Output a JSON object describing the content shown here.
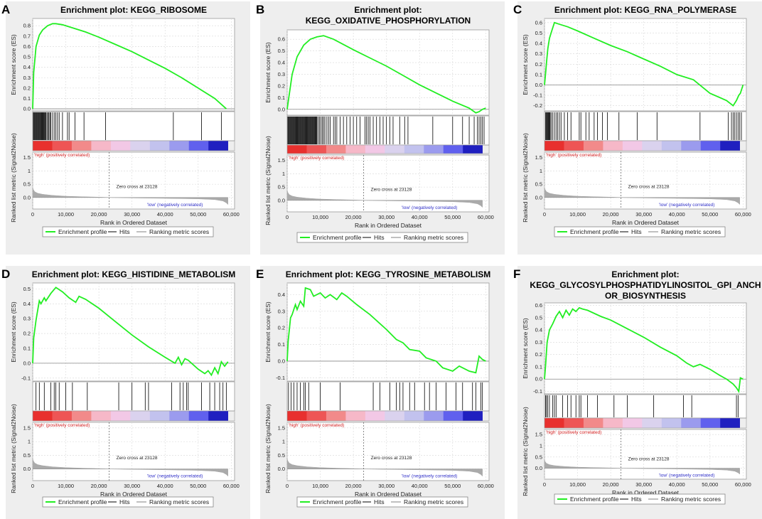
{
  "chart_data": [
    {
      "type": "line",
      "letter": "A",
      "title_lines": [
        "Enrichment plot: KEGG_RIBOSOME"
      ],
      "ylabel": "Enrichment score (ES)",
      "ylabel2": "Ranked list metric (Signal2Noise)",
      "xlabel": "Rank in Ordered Dataset",
      "ylim": [
        -0.02,
        0.87
      ],
      "yticks": [
        "0.0",
        "0.1",
        "0.2",
        "0.3",
        "0.4",
        "0.5",
        "0.6",
        "0.7",
        "0.8"
      ],
      "x": [
        0,
        300,
        1000,
        2000,
        3000,
        4500,
        6000,
        7000,
        9000,
        12000,
        16000,
        20000,
        25000,
        30000,
        35000,
        40000,
        45000,
        50000,
        55000,
        58500
      ],
      "es": [
        0,
        0.35,
        0.6,
        0.71,
        0.76,
        0.8,
        0.82,
        0.82,
        0.81,
        0.78,
        0.74,
        0.69,
        0.62,
        0.55,
        0.47,
        0.39,
        0.3,
        0.2,
        0.1,
        0.0
      ],
      "hits": [
        200,
        400,
        600,
        800,
        1000,
        1200,
        1400,
        1600,
        1800,
        2000,
        2200,
        2400,
        2600,
        2800,
        3000,
        3200,
        3400,
        3600,
        3800,
        4000,
        4300,
        4600,
        4900,
        5200,
        5500,
        6000,
        6500,
        7000,
        7500,
        8000,
        9000,
        10500,
        11000,
        12800,
        15500,
        22000,
        42500,
        51000,
        57000
      ],
      "metric_yticks": [
        "0.0",
        "0.5",
        "1",
        "1.5"
      ],
      "xticks": [
        "0",
        "10,000",
        "20,000",
        "30,000",
        "40,000",
        "50,000",
        "60,000"
      ],
      "zero_cross_label": "Zero cross at 23128",
      "high_label": "'high' (positively correlated)",
      "low_label": "'low' (negatively correlated)",
      "legend": [
        "Enrichment profile",
        "Hits",
        "Ranking metric scores"
      ]
    },
    {
      "type": "line",
      "letter": "B",
      "title_lines": [
        "Enrichment plot:",
        "KEGG_OXIDATIVE_PHOSPHORYLATION"
      ],
      "ylabel": "Enrichment score (ES)",
      "ylabel2": "Ranked list metric (Signal2Noise)",
      "xlabel": "Rank in Ordered Dataset",
      "ylim": [
        -0.05,
        0.68
      ],
      "yticks": [
        "0.0",
        "0.1",
        "0.2",
        "0.3",
        "0.4",
        "0.5",
        "0.6"
      ],
      "x": [
        0,
        500,
        1500,
        3000,
        5000,
        7000,
        9000,
        11000,
        14000,
        20000,
        25000,
        30000,
        35000,
        40000,
        45000,
        50000,
        55000,
        57000,
        58000,
        59000,
        60000
      ],
      "es": [
        0,
        0.1,
        0.3,
        0.45,
        0.55,
        0.6,
        0.62,
        0.63,
        0.6,
        0.51,
        0.44,
        0.37,
        0.29,
        0.21,
        0.14,
        0.07,
        0.01,
        -0.03,
        -0.02,
        0.0,
        0.01
      ],
      "hits": [
        200,
        400,
        600,
        800,
        1000,
        1200,
        1400,
        1600,
        1800,
        2000,
        2200,
        2400,
        2600,
        2800,
        3000,
        3200,
        3400,
        3600,
        3800,
        4000,
        4200,
        4400,
        4600,
        4800,
        5000,
        5200,
        5400,
        5600,
        5800,
        6000,
        6200,
        6400,
        6600,
        6800,
        7000,
        7200,
        7400,
        7600,
        7800,
        8000,
        8200,
        8400,
        8600,
        8800,
        9000,
        9400,
        9800,
        10200,
        10600,
        11000,
        11400,
        12000,
        12500,
        13000,
        14000,
        14500,
        15000,
        16000,
        17000,
        18000,
        19000,
        20000,
        21000,
        22000,
        23500,
        24000,
        24500,
        25000,
        26000,
        27000,
        28000,
        29000,
        30000,
        31000,
        32000,
        34000,
        35500,
        36500,
        44000,
        50000,
        53000,
        55000,
        56500,
        57500,
        58000,
        58500,
        59000,
        59500
      ],
      "metric_yticks": [
        "0.0",
        "0.5",
        "1",
        "1.5"
      ],
      "xticks": [
        "0",
        "10,000",
        "20,000",
        "30,000",
        "40,000",
        "50,000",
        "60,000"
      ],
      "zero_cross_label": "Zero cross at 23128",
      "high_label": "'high' (positively correlated)",
      "low_label": "'low' (negatively correlated)",
      "legend": [
        "Enrichment profile",
        "Hits",
        "Ranking metric scores"
      ]
    },
    {
      "type": "line",
      "letter": "C",
      "title_lines": [
        "Enrichment plot: KEGG_RNA_POLYMERASE"
      ],
      "ylabel": "Enrichment score (ES)",
      "ylabel2": "Ranked list metric (Signal2Noise)",
      "xlabel": "Rank in Ordered Dataset",
      "ylim": [
        -0.25,
        0.64
      ],
      "yticks": [
        "-0.2",
        "-0.1",
        "0.0",
        "0.1",
        "0.2",
        "0.3",
        "0.4",
        "0.5",
        "0.6"
      ],
      "x": [
        0,
        300,
        700,
        1000,
        1500,
        2000,
        2500,
        3000,
        4000,
        5000,
        7000,
        10000,
        15000,
        20000,
        25000,
        30000,
        35000,
        40000,
        45000,
        50000,
        55000,
        57000,
        58000,
        58700,
        59200,
        60000
      ],
      "es": [
        0,
        0.1,
        0.25,
        0.35,
        0.45,
        0.5,
        0.55,
        0.6,
        0.59,
        0.58,
        0.56,
        0.52,
        0.45,
        0.38,
        0.32,
        0.25,
        0.18,
        0.1,
        0.05,
        -0.08,
        -0.15,
        -0.2,
        -0.15,
        -0.1,
        -0.08,
        0.0
      ],
      "hits": [
        300,
        500,
        700,
        900,
        1100,
        1300,
        1500,
        1700,
        2000,
        2500,
        3000,
        3500,
        4000,
        4500,
        5000,
        6000,
        7000,
        8000,
        10500,
        11000,
        12500,
        13500,
        15000,
        16000,
        17500,
        19000,
        22500,
        28000,
        34000,
        47000,
        55500,
        56500,
        57000,
        57500,
        58000,
        58500,
        59000,
        59500
      ],
      "metric_yticks": [
        "0.0",
        "0.5",
        "1",
        "1.5"
      ],
      "xticks": [
        "0",
        "10,000",
        "20,000",
        "30,000",
        "40,000",
        "50,000",
        "60,000"
      ],
      "zero_cross_label": "Zero cross at 23128",
      "high_label": "'high' (positively correlated)",
      "low_label": "'low' (negatively correlated)",
      "legend": [
        "Enrichment profile",
        "Hits",
        "Ranking metric scores"
      ]
    },
    {
      "type": "line",
      "letter": "D",
      "title_lines": [
        "Enrichment plot: KEGG_HISTIDINE_METABOLISM"
      ],
      "ylabel": "Enrichment score (ES)",
      "ylabel2": "Ranked list metric (Signal2Noise)",
      "xlabel": "Rank in Ordered Dataset",
      "ylim": [
        -0.12,
        0.54
      ],
      "yticks": [
        "-0.1",
        "0.0",
        "0.1",
        "0.2",
        "0.3",
        "0.4",
        "0.5"
      ],
      "x": [
        0,
        300,
        1000,
        1300,
        2000,
        2500,
        3500,
        4000,
        5500,
        7000,
        9000,
        11000,
        13000,
        14000,
        16000,
        20000,
        25000,
        30000,
        35000,
        40000,
        43000,
        44000,
        45000,
        46000,
        47000,
        50000,
        52000,
        53000,
        54000,
        55000,
        56000,
        57000,
        58000,
        59000
      ],
      "es": [
        0,
        0.17,
        0.29,
        0.33,
        0.42,
        0.4,
        0.44,
        0.42,
        0.47,
        0.51,
        0.48,
        0.44,
        0.41,
        0.45,
        0.43,
        0.37,
        0.28,
        0.19,
        0.11,
        0.04,
        0.0,
        0.04,
        -0.01,
        0.03,
        0.02,
        -0.04,
        -0.07,
        -0.05,
        -0.08,
        -0.03,
        -0.07,
        0.01,
        -0.02,
        0.01
      ],
      "hits": [
        1000,
        2000,
        3500,
        5500,
        6500,
        7000,
        8000,
        10000,
        12000,
        16500,
        26000,
        30000,
        34000,
        35000,
        42000,
        44500,
        45500,
        46500,
        47000,
        51000,
        53500,
        55000,
        56500,
        57500,
        58500
      ],
      "metric_yticks": [
        "0.0",
        "0.5",
        "1",
        "1.5"
      ],
      "xticks": [
        "0",
        "10,000",
        "20,000",
        "30,000",
        "40,000",
        "50,000",
        "60,000"
      ],
      "zero_cross_label": "Zero cross at 23128",
      "high_label": "'high' (positively correlated)",
      "low_label": "'low' (negatively correlated)",
      "legend": [
        "Enrichment profile",
        "Hits",
        "Ranking metric scores"
      ]
    },
    {
      "type": "line",
      "letter": "E",
      "title_lines": [
        "Enrichment plot: KEGG_TYROSINE_METABOLISM"
      ],
      "ylabel": "Enrichment score (ES)",
      "ylabel2": "Ranked list metric (Signal2Noise)",
      "xlabel": "Rank in Ordered Dataset",
      "ylim": [
        -0.12,
        0.47
      ],
      "yticks": [
        "-0.1",
        "0.0",
        "0.1",
        "0.2",
        "0.3",
        "0.4"
      ],
      "x": [
        0,
        300,
        1000,
        1500,
        2500,
        3000,
        4000,
        5000,
        5500,
        7000,
        8000,
        10000,
        11500,
        13000,
        15000,
        16500,
        18000,
        21000,
        25000,
        30000,
        33000,
        35000,
        37000,
        40000,
        42000,
        45000,
        47000,
        50000,
        52000,
        55000,
        57000,
        58000,
        59000,
        60000
      ],
      "es": [
        0,
        0.12,
        0.26,
        0.28,
        0.34,
        0.31,
        0.36,
        0.33,
        0.44,
        0.43,
        0.39,
        0.41,
        0.38,
        0.4,
        0.37,
        0.41,
        0.39,
        0.34,
        0.28,
        0.19,
        0.13,
        0.11,
        0.07,
        0.06,
        0.02,
        0.0,
        -0.04,
        -0.06,
        -0.03,
        -0.06,
        -0.07,
        0.03,
        0.01,
        0.0
      ],
      "hits": [
        400,
        1200,
        2000,
        3000,
        4000,
        5000,
        5500,
        6500,
        10000,
        16000,
        26000,
        28000,
        31000,
        33000,
        34000,
        35000,
        37000,
        38500,
        41500,
        43000,
        45000,
        48000,
        51000,
        53000,
        56000,
        57000,
        58500,
        59000
      ],
      "metric_yticks": [
        "0.0",
        "0.5",
        "1",
        "1.5"
      ],
      "xticks": [
        "0",
        "10,000",
        "20,000",
        "30,000",
        "40,000",
        "50,000",
        "60,000"
      ],
      "zero_cross_label": "Zero cross at 23128",
      "high_label": "'high' (positively correlated)",
      "low_label": "'low' (negatively correlated)",
      "legend": [
        "Enrichment profile",
        "Hits",
        "Ranking metric scores"
      ]
    },
    {
      "type": "line",
      "letter": "F",
      "title_lines": [
        "Enrichment plot:",
        "KEGG_GLYCOSYLPHOSPHATIDYLINOSITOL_GPI_ANCH",
        "OR_BIOSYNTHESIS"
      ],
      "ylabel": "Enrichment score (ES)",
      "ylabel2": "Ranked list metric (Signal2Noise)",
      "xlabel": "Rank in Ordered Dataset",
      "ylim": [
        -0.12,
        0.62
      ],
      "yticks": [
        "-0.1",
        "0.0",
        "0.1",
        "0.2",
        "0.3",
        "0.4",
        "0.5",
        "0.6"
      ],
      "x": [
        0,
        300,
        800,
        1500,
        2500,
        3500,
        4500,
        5500,
        6500,
        7500,
        8500,
        9500,
        10500,
        11500,
        13000,
        17000,
        20000,
        25000,
        30000,
        35000,
        40000,
        43000,
        45000,
        47000,
        50000,
        53000,
        55000,
        57000,
        58000,
        58700,
        59200,
        60000
      ],
      "es": [
        0,
        0.1,
        0.3,
        0.4,
        0.45,
        0.51,
        0.55,
        0.5,
        0.56,
        0.52,
        0.57,
        0.55,
        0.58,
        0.57,
        0.56,
        0.51,
        0.48,
        0.41,
        0.34,
        0.26,
        0.19,
        0.13,
        0.1,
        0.12,
        0.08,
        0.03,
        0.0,
        -0.04,
        -0.07,
        -0.1,
        0.01,
        0.0
      ],
      "hits": [
        300,
        600,
        1000,
        1500,
        2500,
        3000,
        3500,
        5500,
        7000,
        8000,
        9500,
        10500,
        11000,
        13000,
        16000,
        21000,
        25000,
        33000,
        42000,
        44500,
        58000,
        58500
      ],
      "metric_yticks": [
        "0.0",
        "0.5",
        "1",
        "1.5"
      ],
      "xticks": [
        "0",
        "10,000",
        "20,000",
        "30,000",
        "40,000",
        "50,000",
        "60,000"
      ],
      "zero_cross_label": "Zero cross at 23128",
      "high_label": "'high' (positively correlated)",
      "low_label": "'low' (negatively correlated)",
      "legend": [
        "Enrichment profile",
        "Hits",
        "Ranking metric scores"
      ]
    }
  ],
  "colors": {
    "enrichment_line": "#22ee22",
    "hits": "#000000",
    "metric": "#aaaaaa",
    "heat": [
      "#e8302e",
      "#ee5555",
      "#f28a8a",
      "#f6b8c8",
      "#f2c8e6",
      "#dad2ee",
      "#c2c2ee",
      "#9b9bee",
      "#6060ee",
      "#2020c0"
    ]
  }
}
